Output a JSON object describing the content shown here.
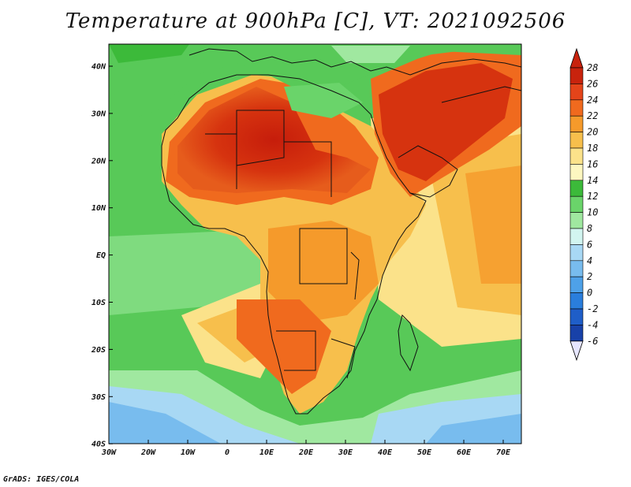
{
  "title": "Temperature at 900hPa [C], VT: 2021092506",
  "credit": "GrADS: IGES/COLA",
  "axes": {
    "x_ticks": [
      "30W",
      "20W",
      "10W",
      "0",
      "10E",
      "20E",
      "30E",
      "40E",
      "50E",
      "60E",
      "70E"
    ],
    "y_ticks": [
      "40N",
      "30N",
      "20N",
      "10N",
      "EQ",
      "10S",
      "20S",
      "30S",
      "40S"
    ],
    "lon_range": [
      -30,
      75
    ],
    "lat_range": [
      -40,
      45
    ]
  },
  "colorbar": {
    "labels": [
      "28",
      "26",
      "24",
      "22",
      "20",
      "18",
      "16",
      "14",
      "12",
      "10",
      "8",
      "6",
      "4",
      "2",
      "0",
      "-2",
      "-4",
      "-6"
    ],
    "colors": [
      "#c8230d",
      "#e4441a",
      "#f06a1e",
      "#f59a2b",
      "#f7bf4c",
      "#fbe28a",
      "#fdf7c0",
      "#3cba3a",
      "#6ad46a",
      "#a0e8a0",
      "#d2f5f0",
      "#a8d8f4",
      "#78bcee",
      "#4ea1e8",
      "#2a7edc",
      "#1f5ec8",
      "#1841a8",
      "#0d1a80"
    ]
  }
}
